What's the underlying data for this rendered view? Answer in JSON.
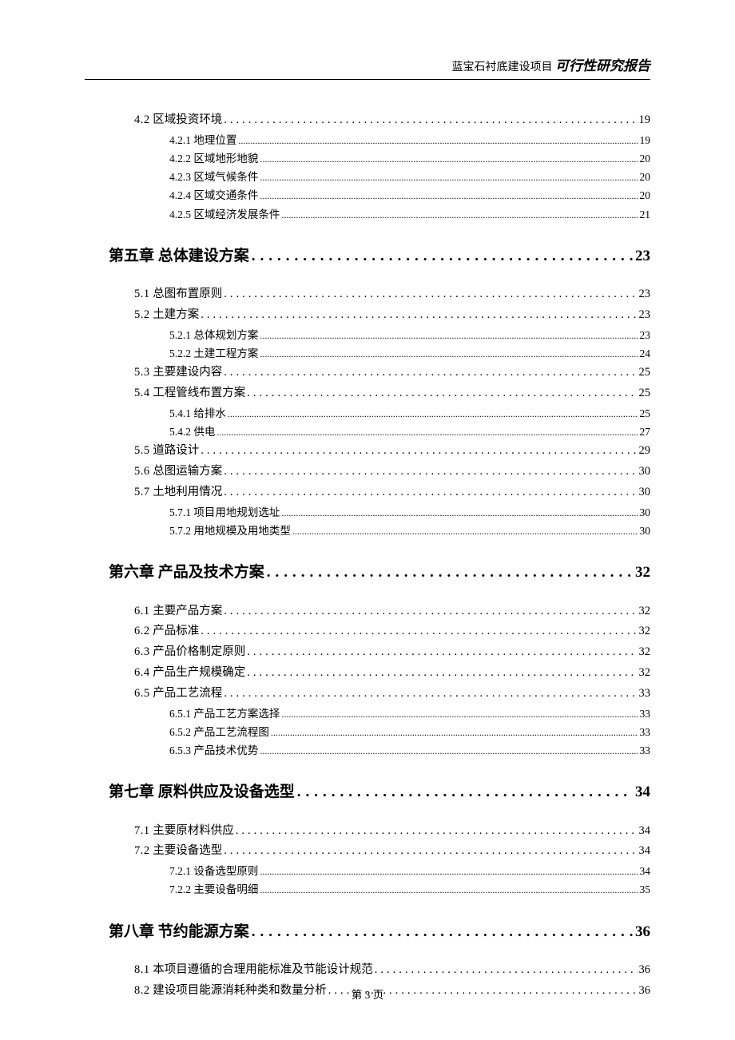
{
  "header": {
    "project": "蓝宝石衬底建设项目",
    "report": "可行性研究报告"
  },
  "toc": [
    {
      "level": "section",
      "num": "4.2",
      "title": "区域投资环境",
      "page": "19"
    },
    {
      "level": "sub",
      "num": "4.2.1",
      "title": "地理位置",
      "page": "19"
    },
    {
      "level": "sub",
      "num": "4.2.2",
      "title": "区域地形地貌",
      "page": "20"
    },
    {
      "level": "sub",
      "num": "4.2.3",
      "title": "区域气候条件",
      "page": "20"
    },
    {
      "level": "sub",
      "num": "4.2.4",
      "title": "区域交通条件",
      "page": "20"
    },
    {
      "level": "sub",
      "num": "4.2.5",
      "title": "区域经济发展条件",
      "page": "21"
    },
    {
      "level": "chapter",
      "num": "第五章",
      "title": "总体建设方案",
      "page": "23"
    },
    {
      "level": "section",
      "num": "5.1",
      "title": "总图布置原则",
      "page": "23"
    },
    {
      "level": "section",
      "num": "5.2",
      "title": "土建方案",
      "page": "23"
    },
    {
      "level": "sub",
      "num": "5.2.1",
      "title": "总体规划方案",
      "page": "23"
    },
    {
      "level": "sub",
      "num": "5.2.2",
      "title": "土建工程方案",
      "page": "24"
    },
    {
      "level": "section",
      "num": "5.3",
      "title": "主要建设内容",
      "page": "25"
    },
    {
      "level": "section",
      "num": "5.4",
      "title": "工程管线布置方案",
      "page": "25"
    },
    {
      "level": "sub",
      "num": "5.4.1",
      "title": "给排水",
      "page": "25"
    },
    {
      "level": "sub",
      "num": "5.4.2",
      "title": "供电",
      "page": "27"
    },
    {
      "level": "section",
      "num": "5.5",
      "title": "道路设计",
      "page": "29"
    },
    {
      "level": "section",
      "num": "5.6",
      "title": "总图运输方案",
      "page": "30"
    },
    {
      "level": "section",
      "num": "5.7",
      "title": "土地利用情况",
      "page": "30"
    },
    {
      "level": "sub",
      "num": "5.7.1",
      "title": "项目用地规划选址",
      "page": "30"
    },
    {
      "level": "sub",
      "num": "5.7.2",
      "title": "用地规模及用地类型",
      "page": "30"
    },
    {
      "level": "chapter",
      "num": "第六章",
      "title": "产品及技术方案",
      "page": "32"
    },
    {
      "level": "section",
      "num": "6.1",
      "title": "主要产品方案",
      "page": "32"
    },
    {
      "level": "section",
      "num": "6.2",
      "title": "产品标准",
      "page": "32"
    },
    {
      "level": "section",
      "num": "6.3",
      "title": "产品价格制定原则",
      "page": "32"
    },
    {
      "level": "section",
      "num": "6.4",
      "title": "产品生产规模确定",
      "page": "32"
    },
    {
      "level": "section",
      "num": "6.5",
      "title": "产品工艺流程",
      "page": "33"
    },
    {
      "level": "sub",
      "num": "6.5.1",
      "title": "产品工艺方案选择",
      "page": "33"
    },
    {
      "level": "sub",
      "num": "6.5.2",
      "title": "产品工艺流程图",
      "page": "33"
    },
    {
      "level": "sub",
      "num": "6.5.3",
      "title": "产品技术优势",
      "page": "33"
    },
    {
      "level": "chapter",
      "num": "第七章",
      "title": "原料供应及设备选型",
      "page": "34"
    },
    {
      "level": "section",
      "num": "7.1",
      "title": "主要原材料供应",
      "page": "34"
    },
    {
      "level": "section",
      "num": "7.2",
      "title": "主要设备选型",
      "page": "34"
    },
    {
      "level": "sub",
      "num": "7.2.1",
      "title": "设备选型原则",
      "page": "34"
    },
    {
      "level": "sub",
      "num": "7.2.2",
      "title": "主要设备明细",
      "page": "35"
    },
    {
      "level": "chapter",
      "num": "第八章",
      "title": "节约能源方案",
      "page": "36"
    },
    {
      "level": "section",
      "num": "8.1",
      "title": "本项目遵循的合理用能标准及节能设计规范",
      "page": "36"
    },
    {
      "level": "section",
      "num": "8.2",
      "title": "建设项目能源消耗种类和数量分析",
      "page": "36"
    }
  ],
  "footer": {
    "page_label": "第 3 页"
  },
  "style": {
    "text_color": "#000000",
    "bg_color": "#ffffff",
    "chapter_dot": ".",
    "section_dot": ".",
    "sub_dot": "."
  }
}
